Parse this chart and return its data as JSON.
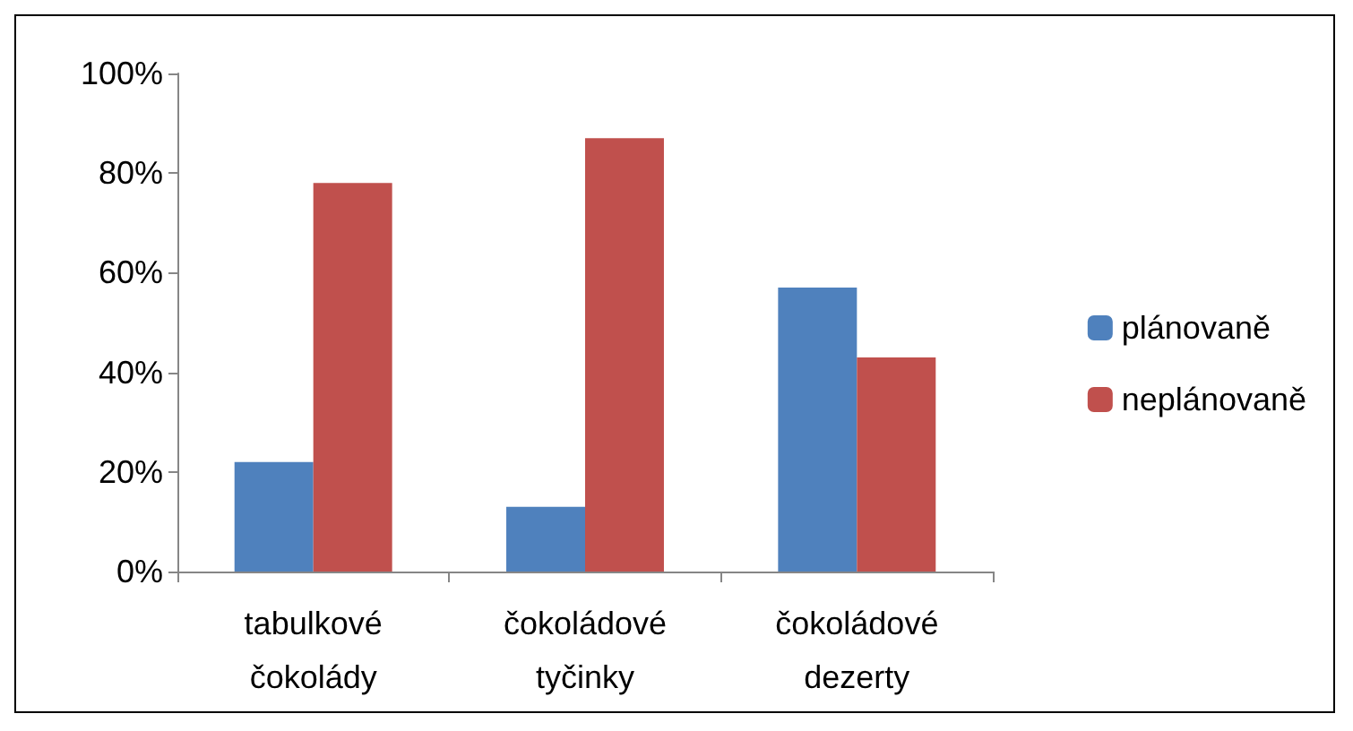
{
  "chart_data": {
    "type": "bar",
    "categories": [
      "tabulkové čokolády",
      "čokoládové tyčinky",
      "čokoládové dezerty"
    ],
    "series": [
      {
        "name": "plánovaně",
        "color": "#4f81bd",
        "values": [
          22,
          13,
          57
        ]
      },
      {
        "name": "neplánovaně",
        "color": "#c0504d",
        "values": [
          78,
          87,
          43
        ]
      }
    ],
    "ylim": [
      0,
      100
    ],
    "yticks": [
      {
        "value": 0,
        "label": "0%"
      },
      {
        "value": 20,
        "label": "20%"
      },
      {
        "value": 40,
        "label": "40%"
      },
      {
        "value": 60,
        "label": "60%"
      },
      {
        "value": 80,
        "label": "80%"
      },
      {
        "value": 100,
        "label": "100%"
      }
    ],
    "grid": false,
    "legend": "right"
  }
}
